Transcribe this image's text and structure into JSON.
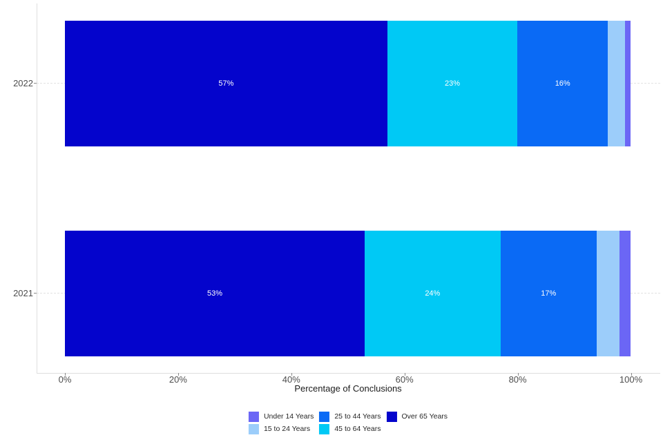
{
  "chart_data": {
    "type": "bar",
    "orientation": "horizontal",
    "stacked": true,
    "title": "",
    "xlabel": "Percentage of Conclusions",
    "ylabel": "",
    "x_range": [
      0,
      100
    ],
    "x_ticks": [
      "0%",
      "20%",
      "40%",
      "60%",
      "80%",
      "100%"
    ],
    "x_tick_values": [
      0,
      20,
      40,
      60,
      80,
      100
    ],
    "grid": "dashed-horizontal",
    "legend_position": "bottom",
    "categories": [
      "2022",
      "2021"
    ],
    "legend": [
      {
        "name": "Under 14 Years",
        "color": "#6B66F5"
      },
      {
        "name": "15 to 24 Years",
        "color": "#9CCDFA"
      },
      {
        "name": "25 to 44 Years",
        "color": "#0A6AF5"
      },
      {
        "name": "45 to 64 Years",
        "color": "#00C9F5"
      },
      {
        "name": "Over 65 Years",
        "color": "#0404CC"
      }
    ],
    "rows": [
      {
        "year": "2022",
        "segments": [
          {
            "name": "Over 65 Years",
            "value": 57,
            "label": "57%",
            "color": "#0404CC"
          },
          {
            "name": "45 to 64 Years",
            "value": 23,
            "label": "23%",
            "color": "#00C9F5"
          },
          {
            "name": "25 to 44 Years",
            "value": 16,
            "label": "16%",
            "color": "#0A6AF5"
          },
          {
            "name": "15 to 24 Years",
            "value": 3,
            "label": "",
            "color": "#9CCDFA"
          },
          {
            "name": "Under 14 Years",
            "value": 1,
            "label": "",
            "color": "#6B66F5"
          }
        ]
      },
      {
        "year": "2021",
        "segments": [
          {
            "name": "Over 65 Years",
            "value": 53,
            "label": "53%",
            "color": "#0404CC"
          },
          {
            "name": "45 to 64 Years",
            "value": 24,
            "label": "24%",
            "color": "#00C9F5"
          },
          {
            "name": "25 to 44 Years",
            "value": 17,
            "label": "17%",
            "color": "#0A6AF5"
          },
          {
            "name": "15 to 24 Years",
            "value": 4,
            "label": "",
            "color": "#9CCDFA"
          },
          {
            "name": "Under 14 Years",
            "value": 2,
            "label": "",
            "color": "#6B66F5"
          }
        ]
      }
    ]
  }
}
